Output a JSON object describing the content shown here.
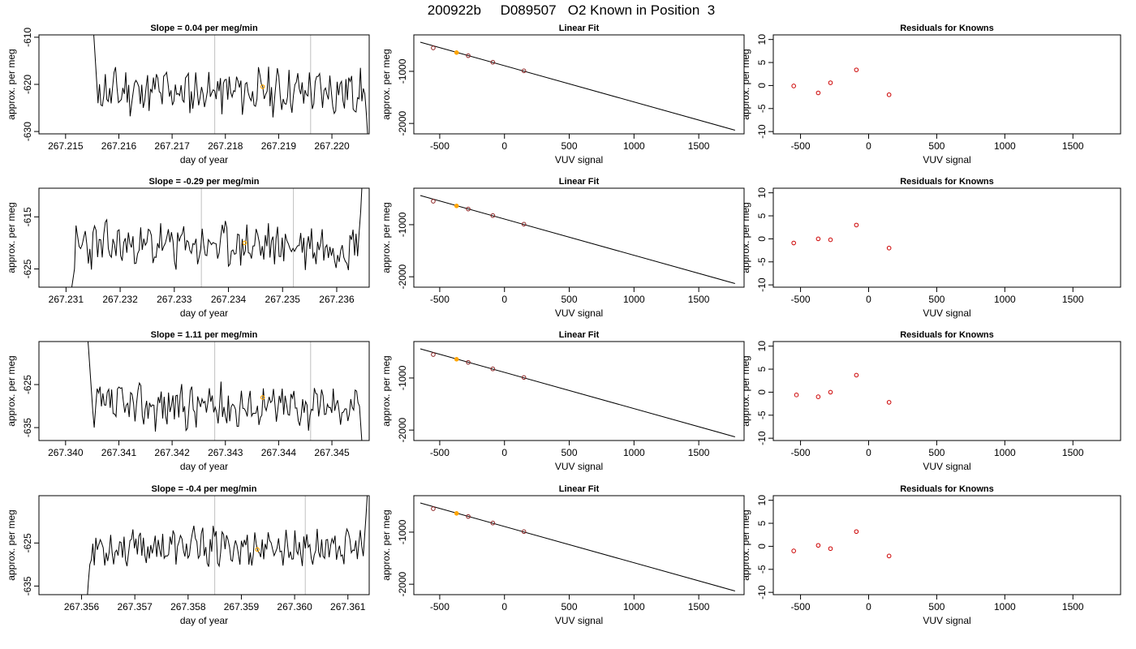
{
  "figure_title": "200922b     D089507   O2 Known in Position  3",
  "colors": {
    "trace": "#000000",
    "highlight": "#ffa500",
    "residual": "#cc0000",
    "vline": "#c0c0c0"
  },
  "chart_data": [
    {
      "type": "line",
      "row": 1,
      "title": "Slope =  0.04  per meg/min",
      "xlabel": "day of year",
      "ylabel": "approx. per meg",
      "xlim": [
        267.2145,
        267.2207
      ],
      "ylim": [
        -630.5,
        -609.5
      ],
      "xticks": [
        "267.215",
        "267.216",
        "267.217",
        "267.218",
        "267.219",
        "267.220"
      ],
      "yticks": [
        "-610",
        "-620",
        "-630"
      ],
      "vlines": [
        267.2178,
        267.2196
      ],
      "highlight_point": {
        "x": 267.2187,
        "y": -620.5
      },
      "series": [
        {
          "start": 267.2155,
          "end": 267.2207,
          "base": -621.5,
          "amp": 2.8,
          "seed": 11,
          "lead": [
            -604,
            -609,
            -614,
            -619,
            -624
          ],
          "tail": [
            -622,
            -626,
            -631
          ]
        }
      ]
    },
    {
      "type": "scatter",
      "row": 1,
      "title": "Linear Fit",
      "xlabel": "VUV signal",
      "ylabel": "approx. per meg",
      "xlim": [
        -700,
        1850
      ],
      "ylim": [
        -2200,
        -300
      ],
      "xticks": [
        "-500",
        "0",
        "500",
        "1000",
        "1500"
      ],
      "yticks": [
        "-1000",
        "-2000"
      ],
      "line": {
        "x": [
          -650,
          1780
        ],
        "y": [
          -440,
          -2130
        ]
      },
      "points": {
        "x": [
          -550,
          -370,
          -280,
          -90,
          150
        ],
        "y": [
          -550,
          -640,
          -700,
          -825,
          -990
        ]
      },
      "highlight_index": 1
    },
    {
      "type": "scatter",
      "row": 1,
      "title": "Residuals for Knowns",
      "xlabel": "VUV signal",
      "ylabel": "approx. per meg",
      "xlim": [
        -700,
        1850
      ],
      "ylim": [
        -10.5,
        11
      ],
      "xticks": [
        "-500",
        "0",
        "500",
        "1000",
        "1500"
      ],
      "yticks": [
        "10",
        "5",
        "0",
        "-5",
        "-10"
      ],
      "points": {
        "x": [
          -550,
          -370,
          -280,
          -90,
          150
        ],
        "y": [
          -0.1,
          -1.6,
          0.6,
          3.4,
          -2.0
        ]
      }
    },
    {
      "type": "line",
      "row": 2,
      "title": "Slope =  -0.29  per meg/min",
      "xlabel": "day of year",
      "ylabel": "approx. per meg",
      "xlim": [
        267.2305,
        267.2366
      ],
      "ylim": [
        -628.5,
        -609.5
      ],
      "xticks": [
        "267.231",
        "267.232",
        "267.233",
        "267.234",
        "267.235",
        "267.236"
      ],
      "yticks": [
        "-615",
        "-625"
      ],
      "vlines": [
        267.2335,
        267.2352
      ],
      "highlight_point": {
        "x": 267.2343,
        "y": -620
      },
      "series": [
        {
          "start": 267.2311,
          "end": 267.2365,
          "base": -620.5,
          "amp": 2.6,
          "seed": 23,
          "lead": [
            -629,
            -627,
            -625
          ],
          "tail": [
            -618,
            -614,
            -608
          ]
        }
      ]
    },
    {
      "type": "scatter",
      "row": 2,
      "title": "Linear Fit",
      "xlabel": "VUV signal",
      "ylabel": "approx. per meg",
      "xlim": [
        -700,
        1850
      ],
      "ylim": [
        -2200,
        -300
      ],
      "xticks": [
        "-500",
        "0",
        "500",
        "1000",
        "1500"
      ],
      "yticks": [
        "-1000",
        "-2000"
      ],
      "line": {
        "x": [
          -650,
          1780
        ],
        "y": [
          -440,
          -2130
        ]
      },
      "points": {
        "x": [
          -550,
          -370,
          -280,
          -90,
          150
        ],
        "y": [
          -550,
          -640,
          -700,
          -825,
          -990
        ]
      },
      "highlight_index": 1
    },
    {
      "type": "scatter",
      "row": 2,
      "title": "Residuals for Knowns",
      "xlabel": "VUV signal",
      "ylabel": "approx. per meg",
      "xlim": [
        -700,
        1850
      ],
      "ylim": [
        -10.5,
        11
      ],
      "xticks": [
        "-500",
        "0",
        "500",
        "1000",
        "1500"
      ],
      "yticks": [
        "10",
        "5",
        "0",
        "-5",
        "-10"
      ],
      "points": {
        "x": [
          -550,
          -370,
          -280,
          -90,
          150
        ],
        "y": [
          -0.9,
          0.0,
          -0.2,
          3.0,
          -2.0
        ]
      }
    },
    {
      "type": "line",
      "row": 3,
      "title": "Slope =  1.11  per meg/min",
      "xlabel": "day of year",
      "ylabel": "approx. per meg",
      "xlim": [
        267.3395,
        267.3457
      ],
      "ylim": [
        -638,
        -615
      ],
      "xticks": [
        "267.340",
        "267.341",
        "267.342",
        "267.343",
        "267.344",
        "267.345"
      ],
      "yticks": [
        "-625",
        "-635"
      ],
      "vlines": [
        267.3428,
        267.3446
      ],
      "highlight_point": {
        "x": 267.3437,
        "y": -628
      },
      "series": [
        {
          "start": 267.3404,
          "end": 267.3456,
          "base": -630,
          "amp": 3.0,
          "seed": 37,
          "lead": [
            -612,
            -616,
            -621,
            -626,
            -631,
            -635
          ],
          "tail": [
            -630,
            -635,
            -640
          ]
        }
      ]
    },
    {
      "type": "scatter",
      "row": 3,
      "title": "Linear Fit",
      "xlabel": "VUV signal",
      "ylabel": "approx. per meg",
      "xlim": [
        -700,
        1850
      ],
      "ylim": [
        -2200,
        -300
      ],
      "xticks": [
        "-500",
        "0",
        "500",
        "1000",
        "1500"
      ],
      "yticks": [
        "-1000",
        "-2000"
      ],
      "line": {
        "x": [
          -650,
          1780
        ],
        "y": [
          -440,
          -2130
        ]
      },
      "points": {
        "x": [
          -550,
          -370,
          -280,
          -90,
          150
        ],
        "y": [
          -550,
          -640,
          -700,
          -825,
          -990
        ]
      },
      "highlight_index": 1
    },
    {
      "type": "scatter",
      "row": 3,
      "title": "Residuals for Knowns",
      "xlabel": "VUV signal",
      "ylabel": "approx. per meg",
      "xlim": [
        -700,
        1850
      ],
      "ylim": [
        -10.5,
        11
      ],
      "xticks": [
        "-500",
        "0",
        "500",
        "1000",
        "1500"
      ],
      "yticks": [
        "10",
        "5",
        "0",
        "-5",
        "-10"
      ],
      "points": {
        "x": [
          -530,
          -370,
          -280,
          -90,
          150
        ],
        "y": [
          -0.6,
          -1.0,
          0.0,
          3.7,
          -2.2
        ]
      }
    },
    {
      "type": "line",
      "row": 4,
      "title": "Slope =  -0.4  per meg/min",
      "xlabel": "day of year",
      "ylabel": "approx. per meg",
      "xlim": [
        267.3552,
        267.3614
      ],
      "ylim": [
        -637,
        -614
      ],
      "xticks": [
        "267.356",
        "267.357",
        "267.358",
        "267.359",
        "267.360",
        "267.361"
      ],
      "yticks": [
        "-625",
        "-635"
      ],
      "vlines": [
        267.3585,
        267.3602
      ],
      "highlight_point": {
        "x": 267.3593,
        "y": -626.5
      },
      "series": [
        {
          "start": 267.3561,
          "end": 267.3614,
          "base": -626,
          "amp": 2.6,
          "seed": 53,
          "lead": [
            -639,
            -634,
            -630
          ],
          "tail": [
            -623,
            -618,
            -612
          ]
        }
      ]
    },
    {
      "type": "scatter",
      "row": 4,
      "title": "Linear Fit",
      "xlabel": "VUV signal",
      "ylabel": "approx. per meg",
      "xlim": [
        -700,
        1850
      ],
      "ylim": [
        -2200,
        -300
      ],
      "xticks": [
        "-500",
        "0",
        "500",
        "1000",
        "1500"
      ],
      "yticks": [
        "-1000",
        "-2000"
      ],
      "line": {
        "x": [
          -650,
          1780
        ],
        "y": [
          -440,
          -2130
        ]
      },
      "points": {
        "x": [
          -550,
          -370,
          -280,
          -90,
          150
        ],
        "y": [
          -550,
          -640,
          -700,
          -825,
          -990
        ]
      },
      "highlight_index": 1
    },
    {
      "type": "scatter",
      "row": 4,
      "title": "Residuals for Knowns",
      "xlabel": "VUV signal",
      "ylabel": "approx. per meg",
      "xlim": [
        -700,
        1850
      ],
      "ylim": [
        -10.5,
        11
      ],
      "xticks": [
        "-500",
        "0",
        "500",
        "1000",
        "1500"
      ],
      "yticks": [
        "10",
        "5",
        "0",
        "-5",
        "-10"
      ],
      "points": {
        "x": [
          -550,
          -370,
          -280,
          -90,
          150
        ],
        "y": [
          -1.0,
          0.2,
          -0.5,
          3.2,
          -2.1
        ]
      }
    }
  ]
}
